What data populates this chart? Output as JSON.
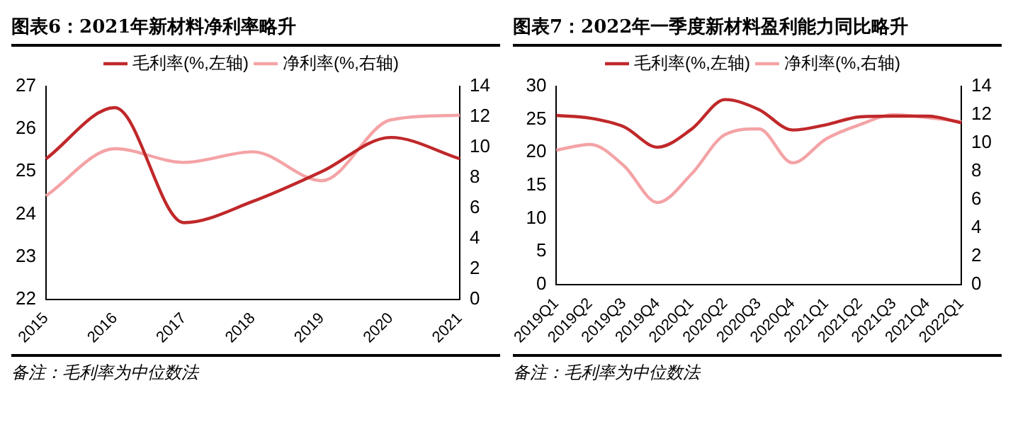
{
  "chart_data": [
    {
      "type": "line",
      "title": "图表6：2021年新材料净利率略升",
      "categories": [
        "2015",
        "2016",
        "2017",
        "2018",
        "2019",
        "2020",
        "2021"
      ],
      "series": [
        {
          "name": "毛利率(%,左轴)",
          "color": "#c0282a",
          "values": [
            25.3,
            26.5,
            23.8,
            24.3,
            25.0,
            25.8,
            25.3
          ]
        },
        {
          "name": "净利率(%,右轴)",
          "color": "#f4a3a6",
          "axis": "y2",
          "values": [
            6.8,
            9.9,
            9.0,
            9.7,
            7.8,
            11.8,
            12.1
          ]
        }
      ],
      "ylim": [
        22,
        27
      ],
      "yticks": [
        22,
        23,
        24,
        25,
        26,
        27
      ],
      "y2lim": [
        0,
        14
      ],
      "y2ticks": [
        0,
        2,
        4,
        6,
        8,
        10,
        12,
        14
      ],
      "legend": "top",
      "grid": false,
      "marker": "none",
      "annotations": [
        "备注：毛利率为中位数法"
      ]
    },
    {
      "type": "line",
      "title": "图表7：2022年一季度新材料盈利能力同比略升",
      "categories": [
        "2019Q1",
        "2019Q2",
        "2019Q3",
        "2019Q4",
        "2020Q1",
        "2020Q2",
        "2020Q3",
        "2020Q4",
        "2021Q1",
        "2021Q2",
        "2021Q3",
        "2021Q4",
        "2022Q1"
      ],
      "series": [
        {
          "name": "毛利率(%,左轴)",
          "color": "#c0282a",
          "values": [
            25.6,
            25.2,
            23.9,
            20.8,
            23.5,
            28.0,
            26.5,
            23.4,
            24.2,
            25.4,
            25.5,
            25.5,
            24.5
          ]
        },
        {
          "name": "净利率(%,右轴)",
          "color": "#f4a3a6",
          "axis": "y2",
          "values": [
            9.5,
            9.9,
            8.4,
            5.8,
            7.8,
            10.6,
            11.0,
            8.6,
            10.3,
            11.3,
            12.0,
            11.8,
            11.5
          ]
        }
      ],
      "ylim": [
        0,
        30
      ],
      "yticks": [
        0,
        5,
        10,
        15,
        20,
        25,
        30
      ],
      "y2lim": [
        0,
        14
      ],
      "y2ticks": [
        0,
        2,
        4,
        6,
        8,
        10,
        12,
        14
      ],
      "legend": "top",
      "grid": false,
      "marker": "none",
      "annotations": [
        "备注：毛利率为中位数法"
      ]
    }
  ]
}
